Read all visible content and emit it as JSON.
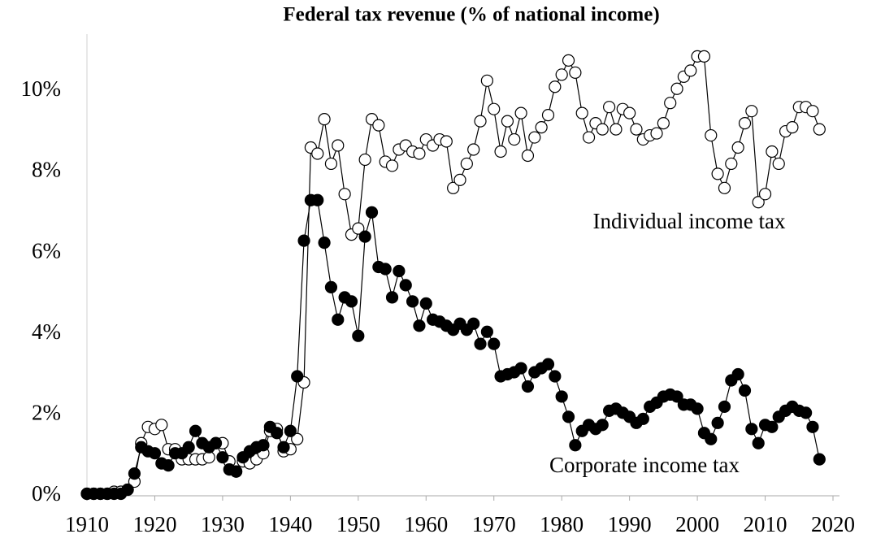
{
  "chart_data": {
    "type": "line",
    "title": "Federal tax revenue (% of national income)",
    "x": [
      1910,
      1911,
      1912,
      1913,
      1914,
      1915,
      1916,
      1917,
      1918,
      1919,
      1920,
      1921,
      1922,
      1923,
      1924,
      1925,
      1926,
      1927,
      1928,
      1929,
      1930,
      1931,
      1932,
      1933,
      1934,
      1935,
      1936,
      1937,
      1938,
      1939,
      1940,
      1941,
      1942,
      1943,
      1944,
      1945,
      1946,
      1947,
      1948,
      1949,
      1950,
      1951,
      1952,
      1953,
      1954,
      1955,
      1956,
      1957,
      1958,
      1959,
      1960,
      1961,
      1962,
      1963,
      1964,
      1965,
      1966,
      1967,
      1968,
      1969,
      1970,
      1971,
      1972,
      1973,
      1974,
      1975,
      1976,
      1977,
      1978,
      1979,
      1980,
      1981,
      1982,
      1983,
      1984,
      1985,
      1986,
      1987,
      1988,
      1989,
      1990,
      1991,
      1992,
      1993,
      1994,
      1995,
      1996,
      1997,
      1998,
      1999,
      2000,
      2001,
      2002,
      2003,
      2004,
      2005,
      2006,
      2007,
      2008,
      2009,
      2010,
      2011,
      2012,
      2013,
      2014,
      2015,
      2016,
      2017,
      2018
    ],
    "series": [
      {
        "name": "Individual income tax",
        "color": "#ffffff",
        "values": [
          0.05,
          0.05,
          0.05,
          0.05,
          0.1,
          0.1,
          0.15,
          0.35,
          1.3,
          1.7,
          1.65,
          1.75,
          1.15,
          1.15,
          0.9,
          0.9,
          0.9,
          0.9,
          0.95,
          1.3,
          1.3,
          0.85,
          0.6,
          0.85,
          0.8,
          0.9,
          1.05,
          1.6,
          1.65,
          1.1,
          1.15,
          1.4,
          2.8,
          8.6,
          8.45,
          9.3,
          8.2,
          8.65,
          7.45,
          6.45,
          6.6,
          8.3,
          9.3,
          9.15,
          8.25,
          8.15,
          8.55,
          8.65,
          8.5,
          8.45,
          8.8,
          8.65,
          8.8,
          8.75,
          7.6,
          7.8,
          8.2,
          8.55,
          9.25,
          10.25,
          9.55,
          8.5,
          9.25,
          8.8,
          9.45,
          8.4,
          8.85,
          9.1,
          9.4,
          10.1,
          10.4,
          10.75,
          10.45,
          9.45,
          8.85,
          9.2,
          9.05,
          9.6,
          9.05,
          9.55,
          9.45,
          9.05,
          8.8,
          8.9,
          8.95,
          9.2,
          9.7,
          10.05,
          10.35,
          10.5,
          10.85,
          10.85,
          8.9,
          7.95,
          7.6,
          8.2,
          8.6,
          9.2,
          9.5,
          7.25,
          7.45,
          8.5,
          8.2,
          9.0,
          9.1,
          9.6,
          9.6,
          9.5,
          9.05
        ]
      },
      {
        "name": "Corporate income tax",
        "color": "#000000",
        "values": [
          0.05,
          0.05,
          0.05,
          0.05,
          0.05,
          0.05,
          0.15,
          0.55,
          1.2,
          1.1,
          1.05,
          0.8,
          0.75,
          1.05,
          1.05,
          1.2,
          1.6,
          1.3,
          1.2,
          1.3,
          0.95,
          0.65,
          0.6,
          0.95,
          1.1,
          1.2,
          1.25,
          1.7,
          1.55,
          1.2,
          1.6,
          2.95,
          6.3,
          7.3,
          7.3,
          6.25,
          5.15,
          4.35,
          4.9,
          4.8,
          3.95,
          6.4,
          7.0,
          5.65,
          5.6,
          4.9,
          5.55,
          5.2,
          4.8,
          4.2,
          4.75,
          4.35,
          4.3,
          4.2,
          4.1,
          4.25,
          4.1,
          4.25,
          3.75,
          4.05,
          3.75,
          2.95,
          3.0,
          3.05,
          3.15,
          2.7,
          3.05,
          3.15,
          3.25,
          2.95,
          2.45,
          1.95,
          1.25,
          1.6,
          1.75,
          1.65,
          1.75,
          2.1,
          2.15,
          2.05,
          1.95,
          1.8,
          1.9,
          2.2,
          2.3,
          2.45,
          2.5,
          2.45,
          2.25,
          2.25,
          2.15,
          1.55,
          1.4,
          1.8,
          2.2,
          2.85,
          3.0,
          2.6,
          1.65,
          1.3,
          1.75,
          1.7,
          1.95,
          2.1,
          2.2,
          2.1,
          2.05,
          1.7,
          0.9
        ]
      }
    ],
    "xlim": [
      1910,
      2020
    ],
    "xticks": [
      1910,
      1920,
      1930,
      1940,
      1950,
      1960,
      1970,
      1980,
      1990,
      2000,
      2010,
      2020
    ],
    "ylim": [
      0,
      11.4
    ],
    "yticks": [
      {
        "value": 0,
        "label": "0%"
      },
      {
        "value": 2,
        "label": "2%"
      },
      {
        "value": 4,
        "label": "4%"
      },
      {
        "value": 6,
        "label": "6%"
      },
      {
        "value": 8,
        "label": "8%"
      },
      {
        "value": 10,
        "label": "10%"
      }
    ]
  }
}
